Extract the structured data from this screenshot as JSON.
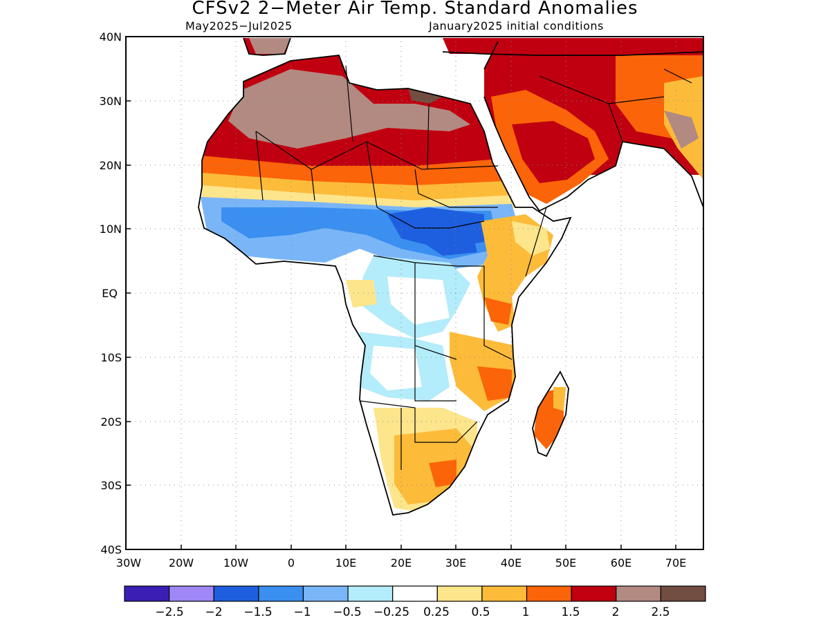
{
  "title": "CFSv2 2−Meter Air Temp. Standard Anomalies",
  "subtitle_left": "May2025−Jul2025",
  "subtitle_right": "January2025 initial conditions",
  "map": {
    "lon_range": [
      -30,
      75
    ],
    "lat_range": [
      -40,
      40
    ],
    "x_ticks": [
      "30W",
      "20W",
      "10W",
      "0",
      "10E",
      "20E",
      "30E",
      "40E",
      "50E",
      "60E",
      "70E"
    ],
    "y_ticks": [
      "40N",
      "30N",
      "20N",
      "10N",
      "EQ",
      "10S",
      "20S",
      "30S",
      "40S"
    ],
    "gridlines": "dotted"
  },
  "colorbar": {
    "colors": [
      "#3b1fb5",
      "#9f87f6",
      "#1e5fe0",
      "#3a8ff0",
      "#7ab6f7",
      "#b3ecfa",
      "#ffffff",
      "#fde58c",
      "#fdbb3a",
      "#fb6408",
      "#c00010",
      "#b28a82",
      "#724d42"
    ],
    "labels": [
      "−2.5",
      "−2",
      "−1.5",
      "−1",
      "−0.5",
      "−0.25",
      "0.25",
      "0.5",
      "1",
      "1.5",
      "2",
      "2.5"
    ]
  },
  "legend_semantics": {
    "strong_warm": "dark red/brown over Sahara, Arabia, North Africa",
    "cool": "blue band across Sahel",
    "warm_south": "orange/yellow over southern Africa, east Africa, Madagascar"
  }
}
